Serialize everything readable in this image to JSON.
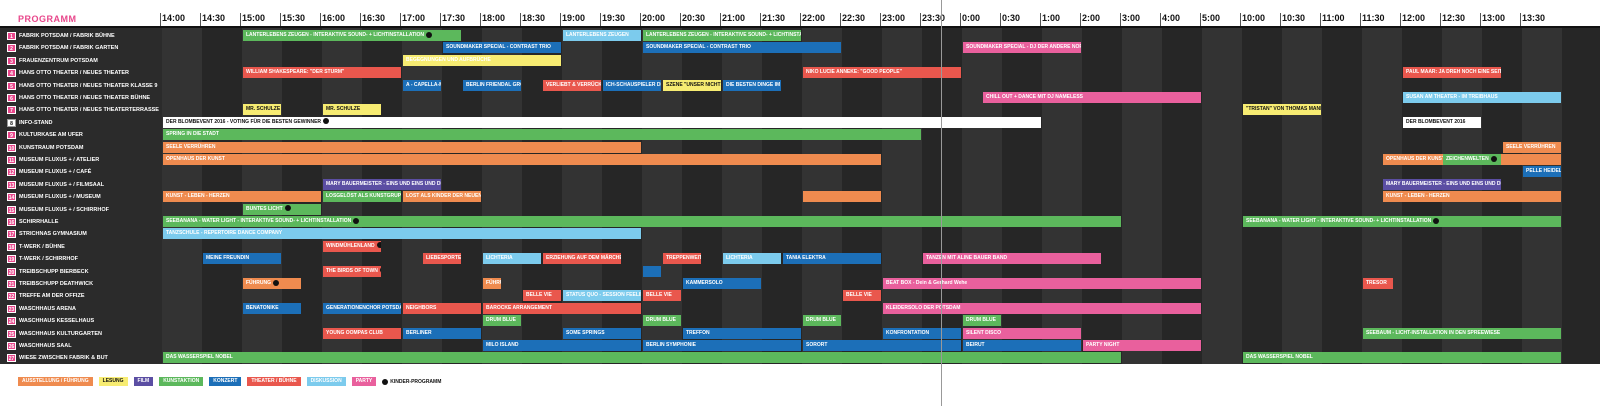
{
  "title": "PROGRAMM",
  "colors": {
    "ausstellung": "#ef8b4f",
    "lesung": "#f7ec72",
    "film": "#5b4ea3",
    "kunstaktion": "#5cb85c",
    "konzert": "#1c6fb8",
    "theater": "#e9574d",
    "diskussion": "#7ccbed",
    "party": "#e9609d",
    "white": "#ffffff"
  },
  "timeline": {
    "times": [
      "14:00",
      "14:30",
      "15:00",
      "15:30",
      "16:00",
      "16:30",
      "17:00",
      "17:30",
      "18:00",
      "18:30",
      "19:00",
      "19:30",
      "20:00",
      "20:30",
      "21:00",
      "21:30",
      "22:00",
      "22:30",
      "23:00",
      "23:30",
      "0:00",
      "0:30",
      "1:00",
      "2:00",
      "3:00",
      "4:00",
      "5:00",
      "10:00",
      "10:30",
      "11:00",
      "11:30",
      "12:00",
      "12:30",
      "13:00",
      "13:30"
    ]
  },
  "rows": [
    {
      "num": "1",
      "label": "FABRIK POTSDAM / FABRIK BÜHNE"
    },
    {
      "num": "2",
      "label": "FABRIK POTSDAM / FABRIK GARTEN"
    },
    {
      "num": "3",
      "label": "FRAUENZENTRUM POTSDAM"
    },
    {
      "num": "4",
      "label": "HANS OTTO THEATER / NEUES THEATER"
    },
    {
      "num": "5",
      "label": "HANS OTTO THEATER / NEUES THEATER KLASSE 9"
    },
    {
      "num": "6",
      "label": "HANS OTTO THEATER / NEUES THEATER BÜHNE"
    },
    {
      "num": "7",
      "label": "HANS OTTO THEATER / NEUES THEATERTERRASSE"
    },
    {
      "num": "8",
      "label": "INFO-STAND",
      "white": true
    },
    {
      "num": "9",
      "label": "KULTURKASE AM UFER"
    },
    {
      "num": "10",
      "label": "KUNSTRAUM POTSDAM"
    },
    {
      "num": "11",
      "label": "MUSEUM FLUXUS + / ATELIER"
    },
    {
      "num": "12",
      "label": "MUSEUM FLUXUS + / CAFÉ"
    },
    {
      "num": "13",
      "label": "MUSEUM FLUXUS + / FILMSAAL"
    },
    {
      "num": "14",
      "label": "MUSEUM FLUXUS + / MUSEUM"
    },
    {
      "num": "15",
      "label": "MUSEUM FLUXUS + / SCHIRRHOF"
    },
    {
      "num": "16",
      "label": "SCHIRRHALLE"
    },
    {
      "num": "17",
      "label": "STRICHNAS GYMNASIUM"
    },
    {
      "num": "18",
      "label": "T-WERK / BÜHNE"
    },
    {
      "num": "19",
      "label": "T-WERK / SCHIRRHOF"
    },
    {
      "num": "20",
      "label": "TREIBSCHUPP BIERBECK"
    },
    {
      "num": "21",
      "label": "TREIBSCHUPP DEATHWICK"
    },
    {
      "num": "22",
      "label": "TREFFE AM DER OFFIZE"
    },
    {
      "num": "23",
      "label": "WASCHHAUS ARENA"
    },
    {
      "num": "24",
      "label": "WASCHHAUS KESSELHAUS"
    },
    {
      "num": "25",
      "label": "WASCHHAUS KULTURGARTEN"
    },
    {
      "num": "26",
      "label": "WASCHHAUS SAAL"
    },
    {
      "num": "27",
      "label": "WIESE ZWISCHEN FABRIK & BUT"
    }
  ],
  "events": [
    {
      "row": 0,
      "s": 2,
      "e": 7.5,
      "c": "kunstaktion",
      "t": "LANTERLEBENS ZEUGEN - INTERAKTIVE SOUND- + LICHTINSTALLATION",
      "kid": true
    },
    {
      "row": 0,
      "s": 10,
      "e": 12,
      "c": "diskussion",
      "t": "LANTERLEBENS ZEUGEN"
    },
    {
      "row": 0,
      "s": 12,
      "e": 16,
      "c": "kunstaktion",
      "t": "LANTERLEBENS ZEUGEN - INTERAKTIVE SOUND- + LICHTINSTALLATION",
      "kid": true
    },
    {
      "row": 1,
      "s": 7,
      "e": 10,
      "c": "konzert",
      "t": "SOUNDMAKER SPECIAL - CONTRAST TRIO"
    },
    {
      "row": 1,
      "s": 12,
      "e": 17,
      "c": "konzert",
      "t": "SOUNDMAKER SPECIAL - CONTRAST TRIO"
    },
    {
      "row": 1,
      "s": 20,
      "e": 23,
      "c": "party",
      "t": "SOUNDMAKER SPECIAL - DJ DER ANDERE NORDEN"
    },
    {
      "row": 2,
      "s": 6,
      "e": 10,
      "c": "lesung",
      "t": "BEGEGNUNGEN UND AUFBRÜCHE"
    },
    {
      "row": 3,
      "s": 2,
      "e": 6,
      "c": "theater",
      "t": "WILLIAM SHAKESPEARE: \"DER STURM\""
    },
    {
      "row": 3,
      "s": 16,
      "e": 20,
      "c": "theater",
      "t": "NIKO LUCIE ANNEKE: \"GOOD PEOPLE\""
    },
    {
      "row": 3,
      "s": 31,
      "e": 33.5,
      "c": "theater",
      "t": "PAUL MAAR: JA DREH NOCH EINE SEITE",
      "kid": true
    },
    {
      "row": 4,
      "s": 6,
      "e": 7,
      "c": "konzert",
      "t": "A - CAPELLA-MUSIK"
    },
    {
      "row": 4,
      "s": 7.5,
      "e": 9,
      "c": "konzert",
      "t": "BERLIN FRIENDAL GROUP"
    },
    {
      "row": 4,
      "s": 9.5,
      "e": 11,
      "c": "theater",
      "t": "VERLIEBT & VERRÜCKT"
    },
    {
      "row": 4,
      "s": 11,
      "e": 12.5,
      "c": "konzert",
      "t": "ICH-SCHAUSPIELER DIGGER DISCO"
    },
    {
      "row": 4,
      "s": 12.5,
      "e": 14,
      "c": "lesung",
      "t": "SZENE \"UNSER NICHTSMAS\"",
      "dark": true
    },
    {
      "row": 4,
      "s": 14,
      "e": 15.5,
      "c": "konzert",
      "t": "DIE BESTEN DINGE IM LEBEN"
    },
    {
      "row": 5,
      "s": 20.5,
      "e": 26,
      "c": "party",
      "t": "CHILL OUT + DANCE MIT DJ NAMELESS"
    },
    {
      "row": 5,
      "s": 31,
      "e": 35,
      "c": "diskussion",
      "t": "SUSAN AM THEATER - IM TREIBHAUS"
    },
    {
      "row": 6,
      "s": 2,
      "e": 3,
      "c": "lesung",
      "t": "MR. SCHULZE",
      "dark": true
    },
    {
      "row": 6,
      "s": 4,
      "e": 5.5,
      "c": "lesung",
      "t": "MR. SCHULZE",
      "dark": true
    },
    {
      "row": 6,
      "s": 27,
      "e": 29,
      "c": "lesung",
      "t": "\"TRISTAN\" VON THOMAS MANN",
      "dark": true
    },
    {
      "row": 7,
      "s": 0,
      "e": 22,
      "c": "white",
      "t": "DER BLOMBEVENT 2016 - VOTING FÜR DIE BESTEN GEWINNER",
      "kid": true,
      "dark": true
    },
    {
      "row": 7,
      "s": 31,
      "e": 33,
      "c": "white",
      "t": "DER BLOMBEVENT 2016",
      "dark": true
    },
    {
      "row": 8,
      "s": 0,
      "e": 19,
      "c": "kunstaktion",
      "t": "SPRING IN DIE STADT"
    },
    {
      "row": 9,
      "s": 0,
      "e": 12,
      "c": "ausstellung",
      "t": "SEELE VERRÜHREN"
    },
    {
      "row": 9,
      "s": 33.5,
      "e": 35,
      "c": "ausstellung",
      "t": "SEELE VERRÜHREN"
    },
    {
      "row": 10,
      "s": 0,
      "e": 18,
      "c": "ausstellung",
      "t": "OPENHAUS DER KUNST"
    },
    {
      "row": 10,
      "s": 30.5,
      "e": 35,
      "c": "ausstellung",
      "t": "OPENHAUS DER KUNST"
    },
    {
      "row": 10,
      "s": 32,
      "e": 33.5,
      "c": "kunstaktion",
      "t": "ZEICHENWELTEN",
      "kid": true
    },
    {
      "row": 11,
      "s": 34,
      "e": 35,
      "c": "konzert",
      "t": "PELLE HEIDEL AM KLAVIER"
    },
    {
      "row": 12,
      "s": 4,
      "e": 7,
      "c": "film",
      "t": "MARY BAUERMEISTER - EINS UND EINS UND DREI"
    },
    {
      "row": 12,
      "s": 30.5,
      "e": 33.5,
      "c": "film",
      "t": "MARY BAUERMEISTER - EINS UND EINS UND DREI"
    },
    {
      "row": 13,
      "s": 0,
      "e": 4,
      "c": "ausstellung",
      "t": "KUNST - LEBEN - HERZEN"
    },
    {
      "row": 13,
      "s": 4,
      "e": 6,
      "c": "kunstaktion",
      "t": "LOSGELÖST ALS KUNSTGRUPPE"
    },
    {
      "row": 13,
      "s": 6,
      "e": 8,
      "c": "ausstellung",
      "t": "LOST ALS KINDER DER NEUEN"
    },
    {
      "row": 13,
      "s": 16,
      "e": 18,
      "c": "ausstellung",
      "t": ""
    },
    {
      "row": 13,
      "s": 30.5,
      "e": 35,
      "c": "ausstellung",
      "t": "KUNST - LEBEN - HERZEN"
    },
    {
      "row": 14,
      "s": 2,
      "e": 4,
      "c": "kunstaktion",
      "t": "BUNTES LICHT",
      "kid": true
    },
    {
      "row": 15,
      "s": 0,
      "e": 24,
      "c": "kunstaktion",
      "t": "SEEBANANA - WATER LIGHT - INTERAKTIVE SOUND- + LICHTINSTALLATION",
      "kid": true
    },
    {
      "row": 15,
      "s": 27,
      "e": 35,
      "c": "kunstaktion",
      "t": "SEEBANANA - WATER LIGHT - INTERAKTIVE SOUND- + LICHTINSTALLATION",
      "kid": true
    },
    {
      "row": 16,
      "s": 0,
      "e": 12,
      "c": "diskussion",
      "t": "TANZSCHULE - REPERTOIRE DANCE COMPANY"
    },
    {
      "row": 17,
      "s": 4,
      "e": 5.5,
      "c": "theater",
      "t": "WINDMÜHLENLAND",
      "kid": true
    },
    {
      "row": 18,
      "s": 1,
      "e": 3,
      "c": "konzert",
      "t": "MEINE FREUNDIN"
    },
    {
      "row": 18,
      "s": 6.5,
      "e": 7.5,
      "c": "theater",
      "t": "LIEBESPORTE",
      "kid": true
    },
    {
      "row": 18,
      "s": 8,
      "e": 9.5,
      "c": "diskussion",
      "t": "LICHTERIA"
    },
    {
      "row": 18,
      "s": 9.5,
      "e": 11.5,
      "c": "theater",
      "t": "ERZIEHUNG AUF DEM MÄRCHEN"
    },
    {
      "row": 18,
      "s": 12.5,
      "e": 13.5,
      "c": "theater",
      "t": "TREPPENWEITE"
    },
    {
      "row": 18,
      "s": 14,
      "e": 15.5,
      "c": "diskussion",
      "t": "LICHTERIA"
    },
    {
      "row": 18,
      "s": 15.5,
      "e": 18,
      "c": "konzert",
      "t": "TANIA ELEKTRA"
    },
    {
      "row": 18,
      "s": 19,
      "e": 23.5,
      "c": "party",
      "t": "TANZEN MIT ALINE BAUER BAND"
    },
    {
      "row": 19,
      "s": 4,
      "e": 5.5,
      "c": "theater",
      "t": "THE BIRDS OF TOWN",
      "kid": true
    },
    {
      "row": 19,
      "s": 12,
      "e": 12.5,
      "c": "konzert",
      "t": ""
    },
    {
      "row": 20,
      "s": 2,
      "e": 3.5,
      "c": "ausstellung",
      "t": "FÜHRUNG",
      "kid": true
    },
    {
      "row": 20,
      "s": 8,
      "e": 8.5,
      "c": "ausstellung",
      "t": "FÜHRUNG"
    },
    {
      "row": 20,
      "s": 13,
      "e": 15,
      "c": "konzert",
      "t": "KAMMERSOLO"
    },
    {
      "row": 20,
      "s": 18,
      "e": 26,
      "c": "party",
      "t": "BEAT BOX - Dein & Gerhard Wehe"
    },
    {
      "row": 20,
      "s": 30,
      "e": 30.8,
      "c": "theater",
      "t": "TRESOR"
    },
    {
      "row": 21,
      "s": 9,
      "e": 10,
      "c": "theater",
      "t": "BELLE VIE"
    },
    {
      "row": 21,
      "s": 10,
      "e": 12,
      "c": "diskussion",
      "t": "STATUS QUO - SESSION FEELING"
    },
    {
      "row": 21,
      "s": 12,
      "e": 13,
      "c": "theater",
      "t": "BELLE VIE"
    },
    {
      "row": 21,
      "s": 17,
      "e": 18,
      "c": "theater",
      "t": "BELLE VIE"
    },
    {
      "row": 22,
      "s": 2,
      "e": 3.5,
      "c": "konzert",
      "t": "BENATONIKE"
    },
    {
      "row": 22,
      "s": 4,
      "e": 6,
      "c": "konzert",
      "t": "GENERATIONENCHOR POTSDAM"
    },
    {
      "row": 22,
      "s": 6,
      "e": 8,
      "c": "theater",
      "t": "NEIGHBORS"
    },
    {
      "row": 22,
      "s": 8,
      "e": 12,
      "c": "theater",
      "t": "BAROCKE ARRANGEMENT"
    },
    {
      "row": 22,
      "s": 18,
      "e": 26,
      "c": "party",
      "t": "KLEIDERSOLO DER POTSDAM"
    },
    {
      "row": 23,
      "s": 8,
      "e": 9,
      "c": "kunstaktion",
      "t": "DRUM BLUE"
    },
    {
      "row": 23,
      "s": 12,
      "e": 13,
      "c": "kunstaktion",
      "t": "DRUM BLUE"
    },
    {
      "row": 23,
      "s": 16,
      "e": 17,
      "c": "kunstaktion",
      "t": "DRUM BLUE"
    },
    {
      "row": 23,
      "s": 20,
      "e": 21,
      "c": "kunstaktion",
      "t": "DRUM BLUE"
    },
    {
      "row": 24,
      "s": 4,
      "e": 6,
      "c": "theater",
      "t": "YOUNG OOMPAS CLUB"
    },
    {
      "row": 24,
      "s": 6,
      "e": 8,
      "c": "konzert",
      "t": "BERLINER"
    },
    {
      "row": 24,
      "s": 10,
      "e": 12,
      "c": "konzert",
      "t": "SOME SPRINGS"
    },
    {
      "row": 24,
      "s": 13,
      "e": 16,
      "c": "konzert",
      "t": "TREFFON"
    },
    {
      "row": 24,
      "s": 18,
      "e": 20,
      "c": "konzert",
      "t": "KONFRONTATION"
    },
    {
      "row": 24,
      "s": 20,
      "e": 23,
      "c": "party",
      "t": "SILENT DISCO"
    },
    {
      "row": 24,
      "s": 30,
      "e": 35,
      "c": "kunstaktion",
      "t": "SEEBAUM - LICHT-INSTALLATION IN DEN SPREEWIESE"
    },
    {
      "row": 25,
      "s": 8,
      "e": 12,
      "c": "konzert",
      "t": "MILO ISLAND"
    },
    {
      "row": 25,
      "s": 12,
      "e": 16,
      "c": "konzert",
      "t": "BERLIN SYMPHONIE"
    },
    {
      "row": 25,
      "s": 16,
      "e": 20,
      "c": "konzert",
      "t": "SORORT"
    },
    {
      "row": 25,
      "s": 20,
      "e": 23,
      "c": "konzert",
      "t": "BEIRUT"
    },
    {
      "row": 25,
      "s": 23,
      "e": 26,
      "c": "party",
      "t": "PARTY NIGHT"
    },
    {
      "row": 26,
      "s": 0,
      "e": 24,
      "c": "kunstaktion",
      "t": "DAS WASSERSPIEL NOBEL"
    },
    {
      "row": 26,
      "s": 27,
      "e": 35,
      "c": "kunstaktion",
      "t": "DAS WASSERSPIEL NOBEL"
    }
  ],
  "legend": [
    {
      "label": "AUSSTELLUNG / FÜHRUNG",
      "c": "ausstellung"
    },
    {
      "label": "LESUNG",
      "c": "lesung",
      "dark": true
    },
    {
      "label": "FILM",
      "c": "film"
    },
    {
      "label": "KUNSTAKTION",
      "c": "kunstaktion"
    },
    {
      "label": "KONZERT",
      "c": "konzert"
    },
    {
      "label": "THEATER / BÜHNE",
      "c": "theater"
    },
    {
      "label": "DISKUSSION",
      "c": "diskussion"
    },
    {
      "label": "PARTY",
      "c": "party"
    }
  ],
  "legend_kid_label": "KINDER-PROGRAMM"
}
